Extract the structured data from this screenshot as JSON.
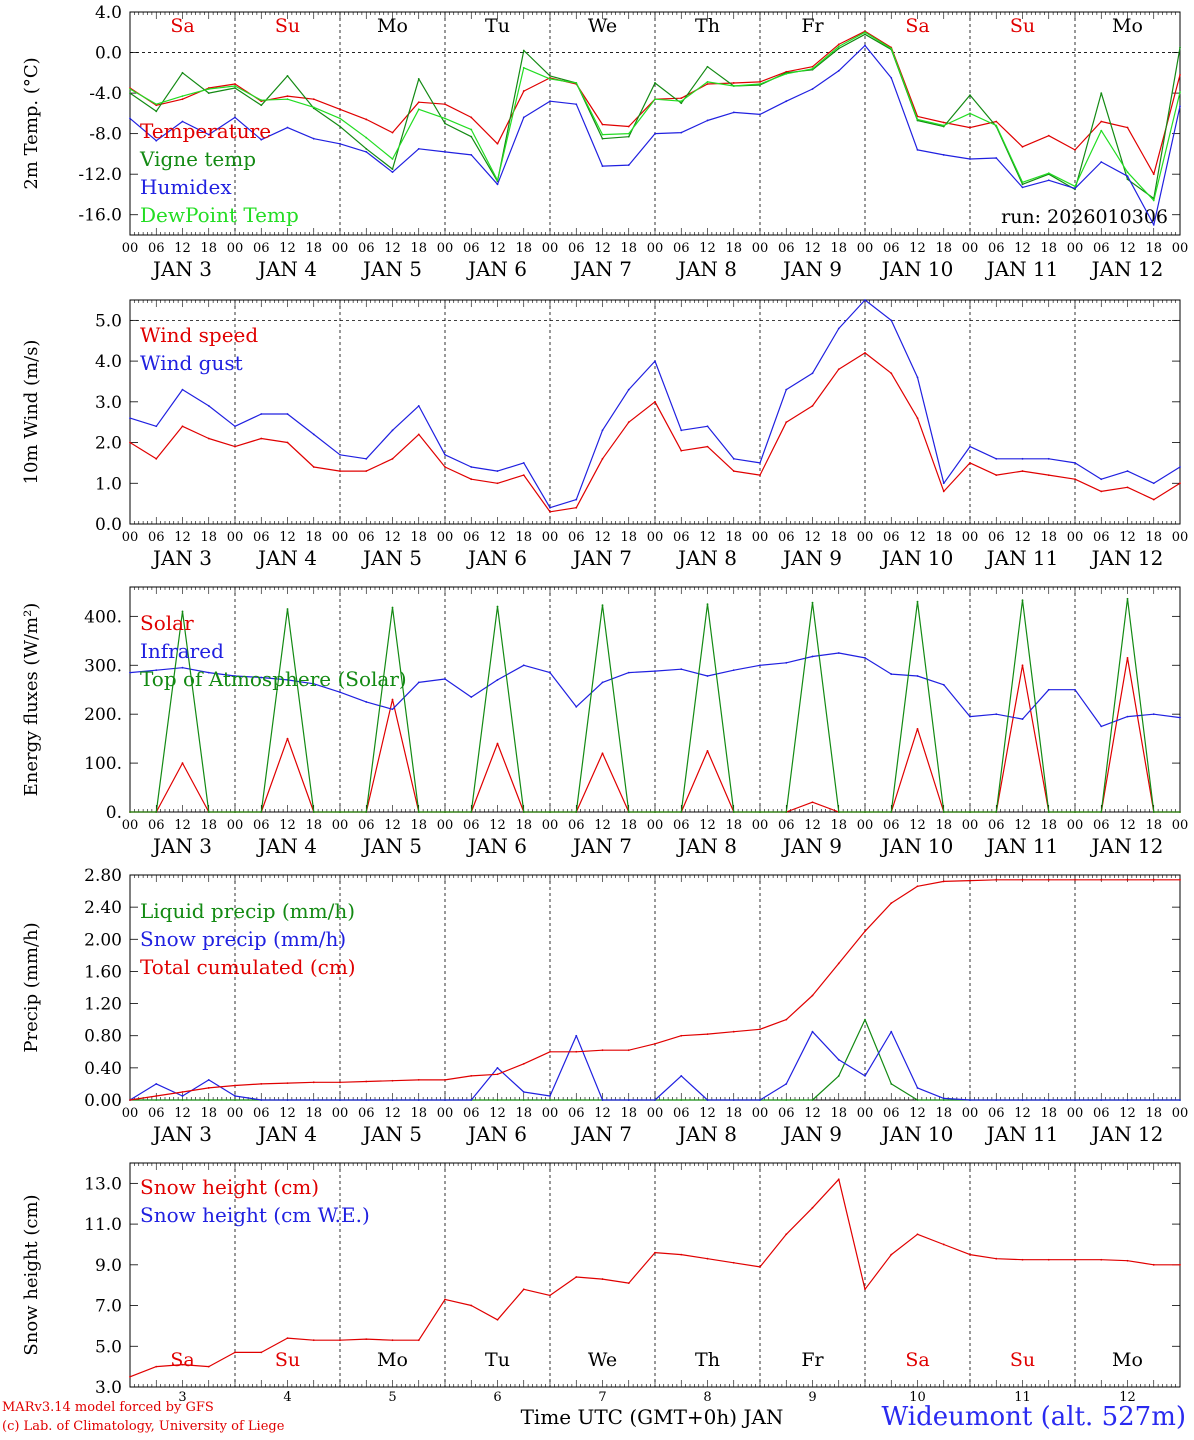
{
  "station_label": "Wideumont (alt. 527m)",
  "credits": [
    "MARv3.14 model forced by GFS",
    "(c) Lab. of Climatology, University of Liege"
  ],
  "colors": {
    "red": "#e00000",
    "green": "#138a13",
    "blue": "#2020e0",
    "lightgreen": "#22dd22",
    "axis": "#000000"
  },
  "time_axis": {
    "hour_ticks": [
      "00",
      "06",
      "12",
      "18"
    ],
    "final_tick": "00",
    "day_labels": [
      "JAN  3",
      "JAN  4",
      "JAN  5",
      "JAN  6",
      "JAN  7",
      "JAN  8",
      "JAN  9",
      "JAN 10",
      "JAN 11",
      "JAN 12"
    ],
    "weekdays": [
      "Sa",
      "Su",
      "Mo",
      "Tu",
      "We",
      "Th",
      "Fr",
      "Sa",
      "Su",
      "Mo"
    ],
    "weekday_colors": [
      "#e00000",
      "#e00000",
      "#000000",
      "#000000",
      "#000000",
      "#000000",
      "#000000",
      "#e00000",
      "#e00000",
      "#000000"
    ],
    "bottom_day_numbers": [
      "3",
      "4",
      "5",
      "6",
      "7",
      "8",
      "9",
      "10",
      "11",
      "12"
    ],
    "xlabel": "Time UTC (GMT+0h) JAN"
  },
  "chart_data": [
    {
      "type": "line",
      "ylabel": "2m Temp. (°C)",
      "ylim": [
        -18,
        4
      ],
      "yticks": [
        4.0,
        0.0,
        -4.0,
        -8.0,
        -12.0,
        -16.0
      ],
      "ytick_labels": [
        "4.0",
        "0.0",
        "-4.0",
        "-8.0",
        "-12.0",
        "-16.0"
      ],
      "ref_line": 0,
      "run_label": "run: 2026010306",
      "show_weekdays": true,
      "x_hours": [
        0,
        6,
        12,
        18,
        24,
        30,
        36,
        42,
        48,
        54,
        60,
        66,
        72,
        78,
        84,
        90,
        96,
        102,
        108,
        114,
        120,
        126,
        132,
        138,
        144,
        150,
        156,
        162,
        168,
        174,
        180,
        186,
        192,
        198,
        204,
        210,
        216,
        222,
        228,
        234,
        240
      ],
      "series": [
        {
          "name": "Temperature",
          "color": "#e00000",
          "values": [
            -3.5,
            -5.2,
            -4.6,
            -3.5,
            -3.1,
            -4.8,
            -4.3,
            -4.6,
            -5.6,
            -6.6,
            -7.9,
            -4.9,
            -5.1,
            -6.4,
            -9.0,
            -3.8,
            -2.5,
            -3.1,
            -7.1,
            -7.3,
            -4.6,
            -4.5,
            -3.1,
            -3.0,
            -2.9,
            -1.9,
            -1.4,
            0.8,
            2.1,
            0.5,
            -6.3,
            -6.9,
            -7.4,
            -6.8,
            -9.3,
            -8.2,
            -9.6,
            -6.8,
            -7.4,
            -12.0,
            -2.2
          ]
        },
        {
          "name": "Vigne temp",
          "color": "#138a13",
          "values": [
            -4.0,
            -5.8,
            -2.0,
            -4.0,
            -3.5,
            -5.2,
            -2.3,
            -5.5,
            -7.3,
            -9.5,
            -11.5,
            -2.6,
            -7.0,
            -8.3,
            -12.7,
            0.2,
            -2.3,
            -3.0,
            -8.5,
            -8.3,
            -3.0,
            -5.0,
            -1.4,
            -3.3,
            -3.2,
            -2.0,
            -1.7,
            0.4,
            1.8,
            0.3,
            -6.7,
            -7.3,
            -4.2,
            -7.3,
            -13.0,
            -12.0,
            -13.5,
            -4.0,
            -12.5,
            -14.4,
            0.5
          ]
        },
        {
          "name": "Humidex",
          "color": "#2020e0",
          "values": [
            -6.5,
            -8.7,
            -6.8,
            -8.1,
            -6.4,
            -8.6,
            -7.4,
            -8.5,
            -9.0,
            -9.8,
            -11.8,
            -9.5,
            -9.8,
            -10.1,
            -13.0,
            -6.4,
            -4.8,
            -5.1,
            -11.2,
            -11.1,
            -8.0,
            -7.9,
            -6.7,
            -5.9,
            -6.1,
            -4.8,
            -3.6,
            -1.8,
            0.7,
            -2.5,
            -9.6,
            -10.1,
            -10.5,
            -10.4,
            -13.3,
            -12.6,
            -13.4,
            -10.8,
            -12.2,
            -17.0,
            -5.3
          ]
        },
        {
          "name": "DewPoint Temp",
          "color": "#22dd22",
          "values": [
            -3.6,
            -5.1,
            -4.3,
            -3.6,
            -3.3,
            -4.7,
            -4.6,
            -5.4,
            -6.5,
            -8.4,
            -10.5,
            -5.6,
            -6.5,
            -7.6,
            -12.6,
            -1.5,
            -2.6,
            -3.0,
            -8.1,
            -8.0,
            -4.6,
            -4.8,
            -2.9,
            -3.3,
            -3.1,
            -2.1,
            -1.6,
            0.6,
            2.0,
            0.4,
            -6.6,
            -7.2,
            -6.0,
            -7.2,
            -12.8,
            -11.9,
            -13.2,
            -7.7,
            -11.8,
            -14.6,
            -3.9
          ]
        }
      ]
    },
    {
      "type": "line",
      "ylabel": "10m Wind (m/s)",
      "ylim": [
        0,
        5.5
      ],
      "yticks": [
        0.0,
        1.0,
        2.0,
        3.0,
        4.0,
        5.0
      ],
      "ytick_labels": [
        "0.0",
        "1.0",
        "2.0",
        "3.0",
        "4.0",
        "5.0"
      ],
      "ref_line": 5.0,
      "x_hours": [
        0,
        6,
        12,
        18,
        24,
        30,
        36,
        42,
        48,
        54,
        60,
        66,
        72,
        78,
        84,
        90,
        96,
        102,
        108,
        114,
        120,
        126,
        132,
        138,
        144,
        150,
        156,
        162,
        168,
        174,
        180,
        186,
        192,
        198,
        204,
        210,
        216,
        222,
        228,
        234,
        240
      ],
      "series": [
        {
          "name": "Wind speed",
          "color": "#e00000",
          "values": [
            2.0,
            1.6,
            2.4,
            2.1,
            1.9,
            2.1,
            2.0,
            1.4,
            1.3,
            1.3,
            1.6,
            2.2,
            1.4,
            1.1,
            1.0,
            1.2,
            0.3,
            0.4,
            1.6,
            2.5,
            3.0,
            1.8,
            1.9,
            1.3,
            1.2,
            2.5,
            2.9,
            3.8,
            4.2,
            3.7,
            2.6,
            0.8,
            1.5,
            1.2,
            1.3,
            1.2,
            1.1,
            0.8,
            0.9,
            0.6,
            1.0
          ]
        },
        {
          "name": "Wind gust",
          "color": "#2020e0",
          "values": [
            2.6,
            2.4,
            3.3,
            2.9,
            2.4,
            2.7,
            2.7,
            2.2,
            1.7,
            1.6,
            2.3,
            2.9,
            1.7,
            1.4,
            1.3,
            1.5,
            0.4,
            0.6,
            2.3,
            3.3,
            4.0,
            2.3,
            2.4,
            1.6,
            1.5,
            3.3,
            3.7,
            4.8,
            5.5,
            5.0,
            3.6,
            1.0,
            1.9,
            1.6,
            1.6,
            1.6,
            1.5,
            1.1,
            1.3,
            1.0,
            1.4
          ]
        }
      ]
    },
    {
      "type": "line",
      "ylabel": "Energy fluxes (W/m²)",
      "ylim": [
        0,
        460
      ],
      "yticks": [
        0,
        100,
        200,
        300,
        400
      ],
      "ytick_labels": [
        "0.",
        "100.",
        "200.",
        "300.",
        "400."
      ],
      "x_hours": [
        0,
        6,
        12,
        18,
        24,
        30,
        36,
        42,
        48,
        54,
        60,
        66,
        72,
        78,
        84,
        90,
        96,
        102,
        108,
        114,
        120,
        126,
        132,
        138,
        144,
        150,
        156,
        162,
        168,
        174,
        180,
        186,
        192,
        198,
        204,
        210,
        216,
        222,
        228,
        234,
        240
      ],
      "series": [
        {
          "name": "Solar",
          "color": "#e00000",
          "values": [
            0,
            0,
            100,
            0,
            0,
            0,
            150,
            0,
            0,
            0,
            230,
            0,
            0,
            0,
            140,
            0,
            0,
            0,
            120,
            0,
            0,
            0,
            125,
            0,
            0,
            0,
            20,
            0,
            0,
            0,
            170,
            0,
            0,
            0,
            300,
            0,
            0,
            0,
            315,
            0,
            0
          ]
        },
        {
          "name": "Infrared",
          "color": "#2020e0",
          "values": [
            285,
            290,
            295,
            285,
            278,
            275,
            270,
            262,
            245,
            225,
            210,
            265,
            272,
            235,
            270,
            300,
            285,
            215,
            265,
            285,
            288,
            292,
            278,
            290,
            300,
            305,
            318,
            325,
            315,
            282,
            278,
            260,
            195,
            200,
            190,
            250,
            250,
            175,
            195,
            200,
            193
          ]
        },
        {
          "name": "Top of Atmosphere (Solar)",
          "color": "#138a13",
          "values": [
            0,
            0,
            410,
            0,
            0,
            0,
            415,
            0,
            0,
            0,
            418,
            0,
            0,
            0,
            420,
            0,
            0,
            0,
            423,
            0,
            0,
            0,
            425,
            0,
            0,
            0,
            428,
            0,
            0,
            0,
            430,
            0,
            0,
            0,
            433,
            0,
            0,
            0,
            436,
            0,
            0
          ]
        }
      ]
    },
    {
      "type": "line",
      "ylabel": "Precip (mm/h)",
      "ylim": [
        0,
        2.8
      ],
      "yticks": [
        0.0,
        0.4,
        0.8,
        1.2,
        1.6,
        2.0,
        2.4,
        2.8
      ],
      "ytick_labels": [
        "0.00",
        "0.40",
        "0.80",
        "1.20",
        "1.60",
        "2.00",
        "2.40",
        "2.80"
      ],
      "x_hours": [
        0,
        6,
        12,
        18,
        24,
        30,
        36,
        42,
        48,
        54,
        60,
        66,
        72,
        78,
        84,
        90,
        96,
        102,
        108,
        114,
        120,
        126,
        132,
        138,
        144,
        150,
        156,
        162,
        168,
        174,
        180,
        186,
        192,
        198,
        204,
        210,
        216,
        222,
        228,
        234,
        240
      ],
      "series": [
        {
          "name": "Liquid precip (mm/h)",
          "color": "#138a13",
          "values": [
            0,
            0,
            0,
            0,
            0,
            0,
            0,
            0,
            0,
            0,
            0,
            0,
            0,
            0,
            0,
            0,
            0,
            0,
            0,
            0,
            0,
            0,
            0,
            0,
            0,
            0,
            0,
            0.3,
            1.0,
            0.2,
            0,
            0,
            0,
            0,
            0,
            0,
            0,
            0,
            0,
            0,
            0
          ]
        },
        {
          "name": "Snow precip (mm/h)",
          "color": "#2020e0",
          "values": [
            0,
            0.2,
            0.05,
            0.25,
            0.05,
            0,
            0,
            0,
            0,
            0,
            0,
            0,
            0,
            0,
            0.4,
            0.1,
            0.05,
            0.8,
            0,
            0,
            0,
            0.3,
            0,
            0,
            0,
            0.2,
            0.85,
            0.5,
            0.3,
            0.85,
            0.15,
            0.02,
            0,
            0,
            0,
            0,
            0,
            0,
            0,
            0,
            0
          ]
        },
        {
          "name": "Total cumulated (cm)",
          "color": "#e00000",
          "values": [
            0,
            0.05,
            0.1,
            0.15,
            0.18,
            0.2,
            0.21,
            0.22,
            0.22,
            0.23,
            0.24,
            0.25,
            0.25,
            0.3,
            0.32,
            0.45,
            0.6,
            0.6,
            0.62,
            0.62,
            0.7,
            0.8,
            0.82,
            0.85,
            0.88,
            1.0,
            1.3,
            1.7,
            2.1,
            2.45,
            2.66,
            2.72,
            2.73,
            2.74,
            2.74,
            2.74,
            2.74,
            2.74,
            2.74,
            2.74,
            2.74
          ]
        }
      ]
    },
    {
      "type": "line",
      "ylabel": "Snow height (cm)",
      "ylim": [
        3.0,
        14.0
      ],
      "yticks": [
        3.0,
        5.0,
        7.0,
        9.0,
        11.0,
        13.0
      ],
      "ytick_labels": [
        "3.0",
        "5.0",
        "7.0",
        "9.0",
        "11.0",
        "13.0"
      ],
      "weekdays_inside": true,
      "x_hours": [
        0,
        6,
        12,
        18,
        24,
        30,
        36,
        42,
        48,
        54,
        60,
        66,
        72,
        78,
        84,
        90,
        96,
        102,
        108,
        114,
        120,
        126,
        132,
        138,
        144,
        150,
        156,
        162,
        168,
        174,
        180,
        186,
        192,
        198,
        204,
        210,
        216,
        222,
        228,
        234,
        240
      ],
      "series": [
        {
          "name": "Snow height (cm)",
          "color": "#e00000",
          "values": [
            3.5,
            4.0,
            4.1,
            4.0,
            4.7,
            4.7,
            5.4,
            5.3,
            5.3,
            5.35,
            5.3,
            5.3,
            7.3,
            7.0,
            6.3,
            7.8,
            7.5,
            8.4,
            8.3,
            8.1,
            9.6,
            9.5,
            9.3,
            9.1,
            8.9,
            10.5,
            11.8,
            13.2,
            7.8,
            9.5,
            10.5,
            10.0,
            9.5,
            9.3,
            9.25,
            9.25,
            9.25,
            9.25,
            9.2,
            9.0,
            9.0
          ]
        },
        {
          "name": "Snow height (cm W.E.)",
          "color": "#2020e0",
          "values": []
        }
      ]
    }
  ]
}
